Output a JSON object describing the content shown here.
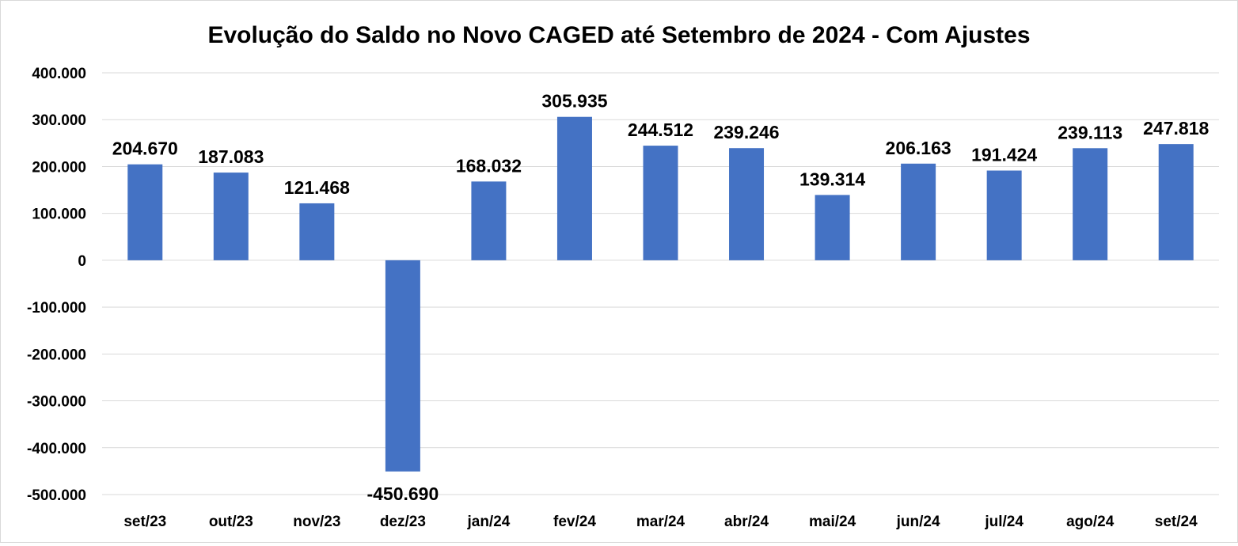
{
  "chart_data": {
    "type": "bar",
    "title": "Evolução do Saldo no Novo CAGED até Setembro de 2024 - Com Ajustes",
    "xlabel": "",
    "ylabel": "",
    "categories": [
      "set/23",
      "out/23",
      "nov/23",
      "dez/23",
      "jan/24",
      "fev/24",
      "mar/24",
      "abr/24",
      "mai/24",
      "jun/24",
      "jul/24",
      "ago/24",
      "set/24"
    ],
    "values": [
      204670,
      187083,
      121468,
      -450690,
      168032,
      305935,
      244512,
      239246,
      139314,
      206163,
      191424,
      239113,
      247818
    ],
    "data_labels": [
      "204.670",
      "187.083",
      "121.468",
      "-450.690",
      "168.032",
      "305.935",
      "244.512",
      "239.246",
      "139.314",
      "206.163",
      "191.424",
      "239.113",
      "247.818"
    ],
    "ylim": [
      -500000,
      400000
    ],
    "yticks": [
      400000,
      300000,
      200000,
      100000,
      0,
      -100000,
      -200000,
      -300000,
      -400000,
      -500000
    ],
    "ytick_labels": [
      "400.000",
      "300.000",
      "200.000",
      "100.000",
      "0",
      "-100.000",
      "-200.000",
      "-300.000",
      "-400.000",
      "-500.000"
    ],
    "grid": true,
    "legend": "none",
    "bar_color": "#4472C4",
    "grid_color": "#D9D9D9"
  }
}
